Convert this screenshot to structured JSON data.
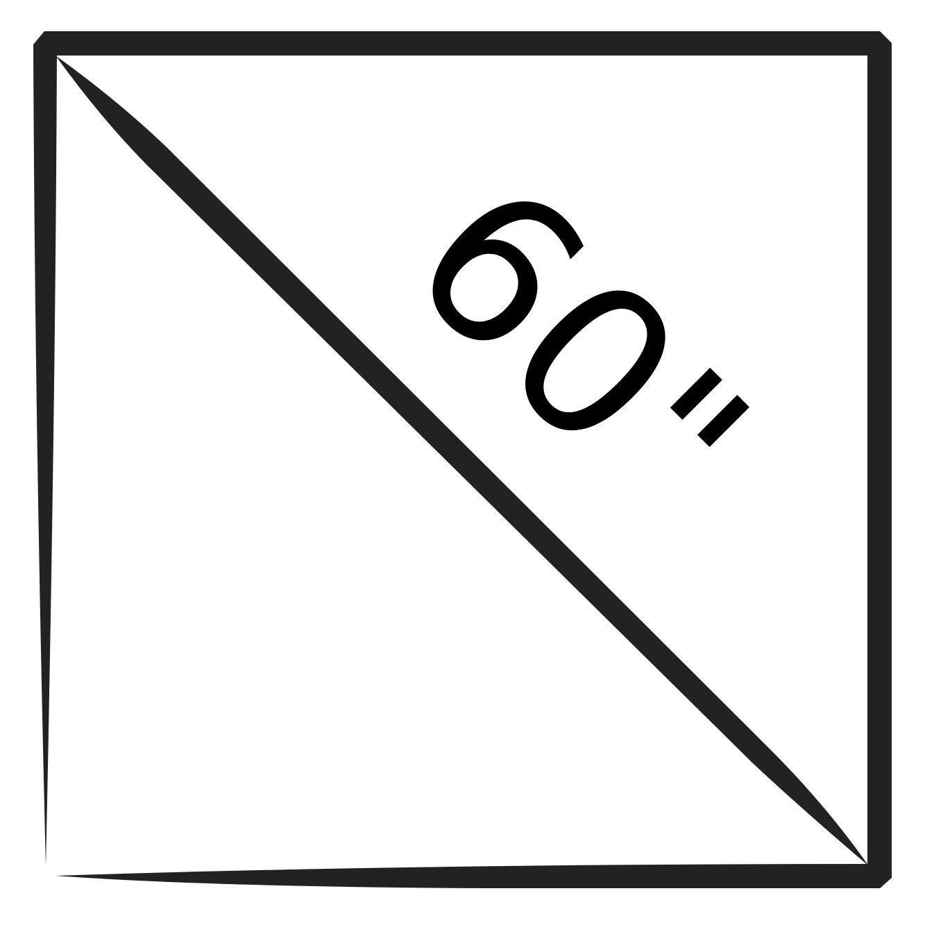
{
  "label": "60\""
}
